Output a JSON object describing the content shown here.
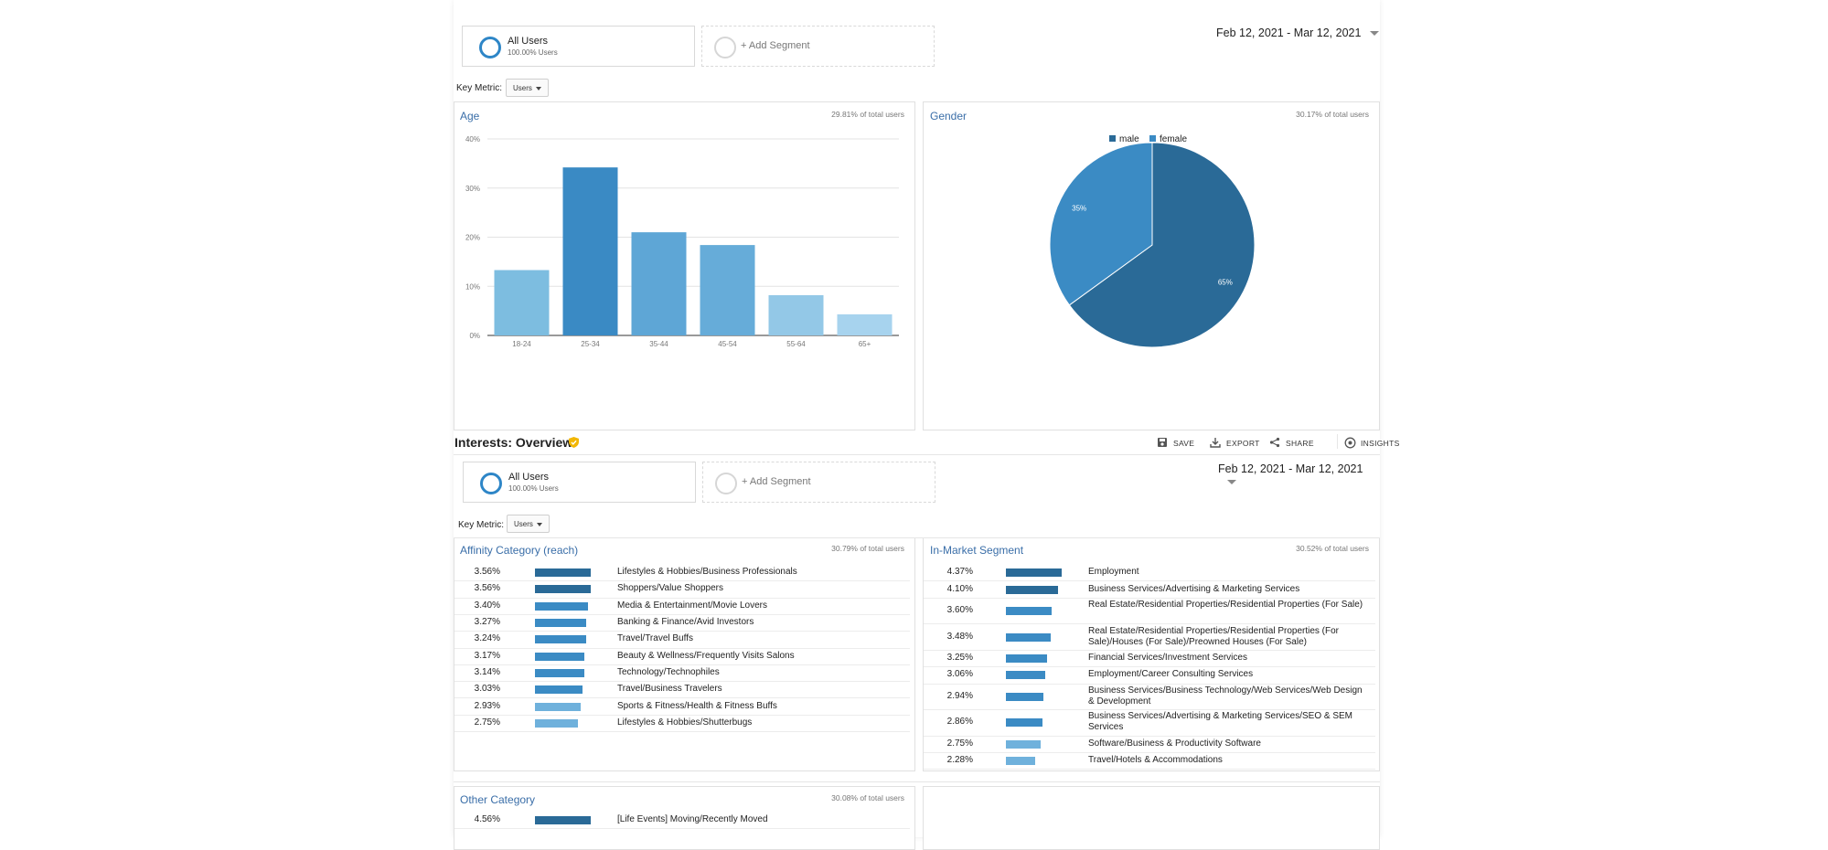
{
  "segments": {
    "all_users_label": "All Users",
    "all_users_sub": "100.00% Users",
    "add_segment_label": "+ Add Segment"
  },
  "date_range": "Feb 12, 2021 - Mar 12, 2021",
  "key_metric": {
    "label": "Key Metric:",
    "value": "Users"
  },
  "age_panel": {
    "title": "Age",
    "total": "29.81% of total users"
  },
  "gender_panel": {
    "title": "Gender",
    "total": "30.17% of total users"
  },
  "interests": {
    "title": "Interests: Overview",
    "actions": {
      "save": "SAVE",
      "export": "EXPORT",
      "share": "SHARE",
      "insights": "INSIGHTS"
    }
  },
  "affinity": {
    "title": "Affinity Category (reach)",
    "total": "30.79% of total users",
    "rows": [
      {
        "pct": "3.56%",
        "value": 3.56,
        "label": "Lifestyles & Hobbies/Business Professionals"
      },
      {
        "pct": "3.56%",
        "value": 3.56,
        "label": "Shoppers/Value Shoppers"
      },
      {
        "pct": "3.40%",
        "value": 3.4,
        "label": "Media & Entertainment/Movie Lovers"
      },
      {
        "pct": "3.27%",
        "value": 3.27,
        "label": "Banking & Finance/Avid Investors"
      },
      {
        "pct": "3.24%",
        "value": 3.24,
        "label": "Travel/Travel Buffs"
      },
      {
        "pct": "3.17%",
        "value": 3.17,
        "label": "Beauty & Wellness/Frequently Visits Salons"
      },
      {
        "pct": "3.14%",
        "value": 3.14,
        "label": "Technology/Technophiles"
      },
      {
        "pct": "3.03%",
        "value": 3.03,
        "label": "Travel/Business Travelers"
      },
      {
        "pct": "2.93%",
        "value": 2.93,
        "label": "Sports & Fitness/Health & Fitness Buffs"
      },
      {
        "pct": "2.75%",
        "value": 2.75,
        "label": "Lifestyles & Hobbies/Shutterbugs"
      }
    ]
  },
  "inmarket": {
    "title": "In-Market Segment",
    "total": "30.52% of total users",
    "rows": [
      {
        "pct": "4.37%",
        "value": 4.37,
        "label": "Employment"
      },
      {
        "pct": "4.10%",
        "value": 4.1,
        "label": "Business Services/Advertising & Marketing Services"
      },
      {
        "pct": "3.60%",
        "value": 3.6,
        "label": "Real Estate/Residential Properties/Residential Properties (For Sale)"
      },
      {
        "pct": "3.48%",
        "value": 3.48,
        "label": "Real Estate/Residential Properties/Residential Properties (For Sale)/Houses (For Sale)/Preowned Houses (For Sale)"
      },
      {
        "pct": "3.25%",
        "value": 3.25,
        "label": "Financial Services/Investment Services"
      },
      {
        "pct": "3.06%",
        "value": 3.06,
        "label": "Employment/Career Consulting Services"
      },
      {
        "pct": "2.94%",
        "value": 2.94,
        "label": "Business Services/Business Technology/Web Services/Web Design & Development"
      },
      {
        "pct": "2.86%",
        "value": 2.86,
        "label": "Business Services/Advertising & Marketing Services/SEO & SEM Services"
      },
      {
        "pct": "2.75%",
        "value": 2.75,
        "label": "Software/Business & Productivity Software"
      },
      {
        "pct": "2.28%",
        "value": 2.28,
        "label": "Travel/Hotels & Accommodations"
      }
    ]
  },
  "other": {
    "title": "Other Category",
    "total": "30.08% of total users",
    "rows": [
      {
        "pct": "4.56%",
        "value": 4.56,
        "label": "[Life Events] Moving/Recently Moved"
      }
    ]
  },
  "colors": {
    "dark": "#2a6a97",
    "mid": "#3b8bc4",
    "light": "#6fb1dc",
    "lighter": "#94c9e8",
    "title": "#3a6ea8"
  },
  "chart_data": [
    {
      "type": "bar",
      "title": "Age",
      "categories": [
        "18-24",
        "25-34",
        "35-44",
        "45-54",
        "55-64",
        "65+"
      ],
      "values": [
        13.3,
        34.2,
        21.0,
        18.4,
        8.2,
        4.3
      ],
      "yticks": [
        "0%",
        "10%",
        "20%",
        "30%",
        "40%"
      ],
      "ylim": [
        0,
        40
      ],
      "grid": true
    },
    {
      "type": "pie",
      "title": "Gender",
      "categories": [
        "male",
        "female"
      ],
      "values": [
        65,
        35
      ],
      "slice_labels": [
        "65%",
        "35%"
      ],
      "legend": "top"
    }
  ]
}
